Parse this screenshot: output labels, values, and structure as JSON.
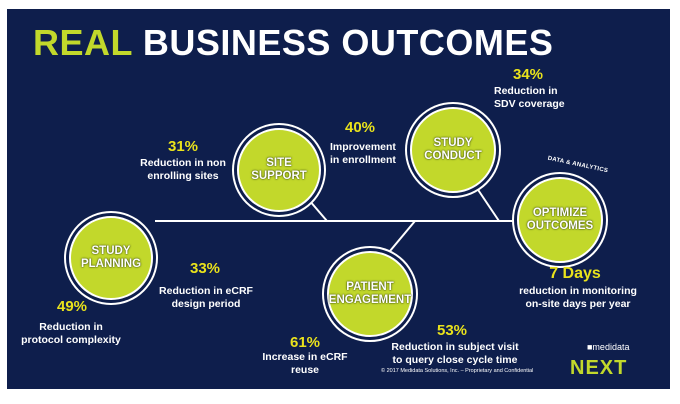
{
  "title": {
    "part1": "REAL",
    "part2": "BUSINESS OUTCOMES"
  },
  "nodes": {
    "study_planning": "STUDY\nPLANNING",
    "site_support": "SITE\nSUPPORT",
    "study_conduct": "STUDY\nCONDUCT",
    "patient_engagement": "PATIENT\nENGAGEMENT",
    "optimize_outcomes": "OPTIMIZE\nOUTCOMES"
  },
  "tag": "DATA & ANALYTICS",
  "stats": [
    {
      "value": "49%",
      "text": "Reduction in\nprotocol complexity"
    },
    {
      "value": "33%",
      "text": "Reduction in eCRF\ndesign period"
    },
    {
      "value": "31%",
      "text": "Reduction in non\nenrolling sites"
    },
    {
      "value": "40%",
      "text": "Improvement\nin enrollment"
    },
    {
      "value": "34%",
      "text": "Reduction in\nSDV coverage"
    },
    {
      "value": "61%",
      "text": "Increase in eCRF\nreuse"
    },
    {
      "value": "53%",
      "text": "Reduction in subject visit\nto query close cycle time"
    },
    {
      "value": "7 Days",
      "text": "reduction in monitoring\non-site days per year"
    }
  ],
  "footer": {
    "copyright": "© 2017 Medidata Solutions, Inc. – Proprietary and Confidential",
    "brand_small": "■medidata",
    "brand": "NEXT"
  },
  "colors": {
    "background": "#0e1e4c",
    "accent": "#c2d82b",
    "highlight": "#e9e21c"
  }
}
